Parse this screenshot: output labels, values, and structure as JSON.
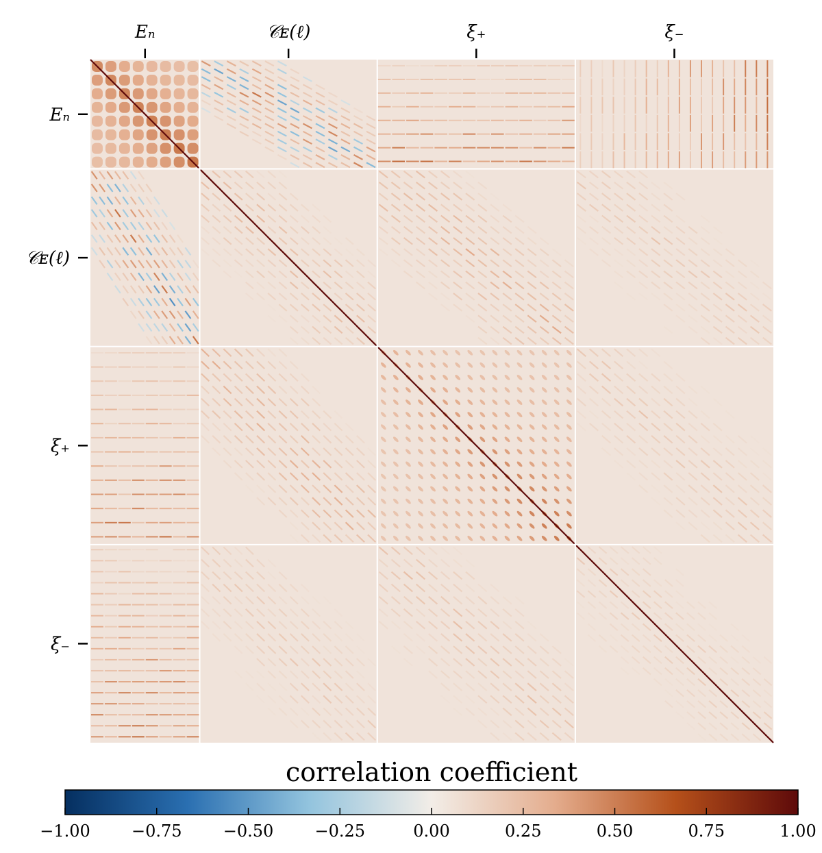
{
  "chart_data": {
    "type": "heatmap",
    "title": "",
    "blocks": [
      {
        "label": "Eₙ"
      },
      {
        "label": "𝒞ᴇ(ℓ)"
      },
      {
        "label": "ξ₊"
      },
      {
        "label": "ξ₋"
      }
    ],
    "block_fractions": [
      0.16,
      0.26,
      0.29,
      0.29
    ],
    "colorbar": {
      "label": "correlation coefficient",
      "range": [
        -1.0,
        1.0
      ],
      "ticks": [
        "−1.00",
        "−0.75",
        "−0.50",
        "−0.25",
        "0.00",
        "0.25",
        "0.50",
        "0.75",
        "1.00"
      ],
      "tick_values": [
        -1.0,
        -0.75,
        -0.5,
        -0.25,
        0.0,
        0.25,
        0.5,
        0.75,
        1.0
      ],
      "colormap": [
        "#052f60",
        "#2a6fb1",
        "#93c4de",
        "#f2ede7",
        "#e4ad8e",
        "#b5501a",
        "#5e0a0a"
      ]
    },
    "background_value": 0.05,
    "diagonal_value": 1.0,
    "legend": "none",
    "grid": false
  }
}
